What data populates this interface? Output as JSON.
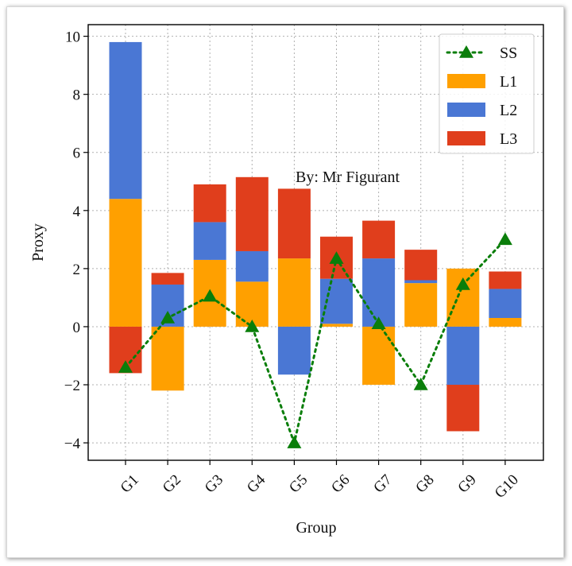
{
  "chart_data": {
    "type": "bar",
    "stacked": true,
    "categories": [
      "G1",
      "G2",
      "G3",
      "G4",
      "G5",
      "G6",
      "G7",
      "G8",
      "G9",
      "G10"
    ],
    "xlabel": "Group",
    "ylabel": "Proxy",
    "ylim": [
      -4.6,
      10.4
    ],
    "yticks": [
      -4,
      -2,
      0,
      2,
      4,
      6,
      8,
      10
    ],
    "ytick_labels": [
      "−4",
      "−2",
      "0",
      "2",
      "4",
      "6",
      "8",
      "10"
    ],
    "grid": true,
    "legend_position": "top-right",
    "annotation": "By: Mr Figurant",
    "series": [
      {
        "name": "L1",
        "kind": "bar",
        "color": "#FFA000",
        "values": [
          4.4,
          -2.2,
          2.3,
          1.55,
          2.35,
          0.1,
          -2.0,
          1.5,
          2.0,
          0.3
        ]
      },
      {
        "name": "L2",
        "kind": "bar",
        "color": "#4A77D4",
        "values": [
          5.4,
          1.45,
          1.3,
          1.05,
          -1.65,
          1.55,
          2.35,
          0.1,
          -2.0,
          1.0
        ]
      },
      {
        "name": "L3",
        "kind": "bar",
        "color": "#E03E1C",
        "values": [
          -1.6,
          0.4,
          1.3,
          2.55,
          2.4,
          1.45,
          1.3,
          1.05,
          -1.6,
          0.6
        ]
      },
      {
        "name": "SS",
        "kind": "line",
        "color": "#0A7E0A",
        "marker": "triangle",
        "linestyle": "dotted",
        "values": [
          -1.4,
          0.3,
          1.05,
          0.0,
          -4.0,
          2.35,
          0.1,
          -2.0,
          1.45,
          3.0
        ]
      }
    ]
  }
}
